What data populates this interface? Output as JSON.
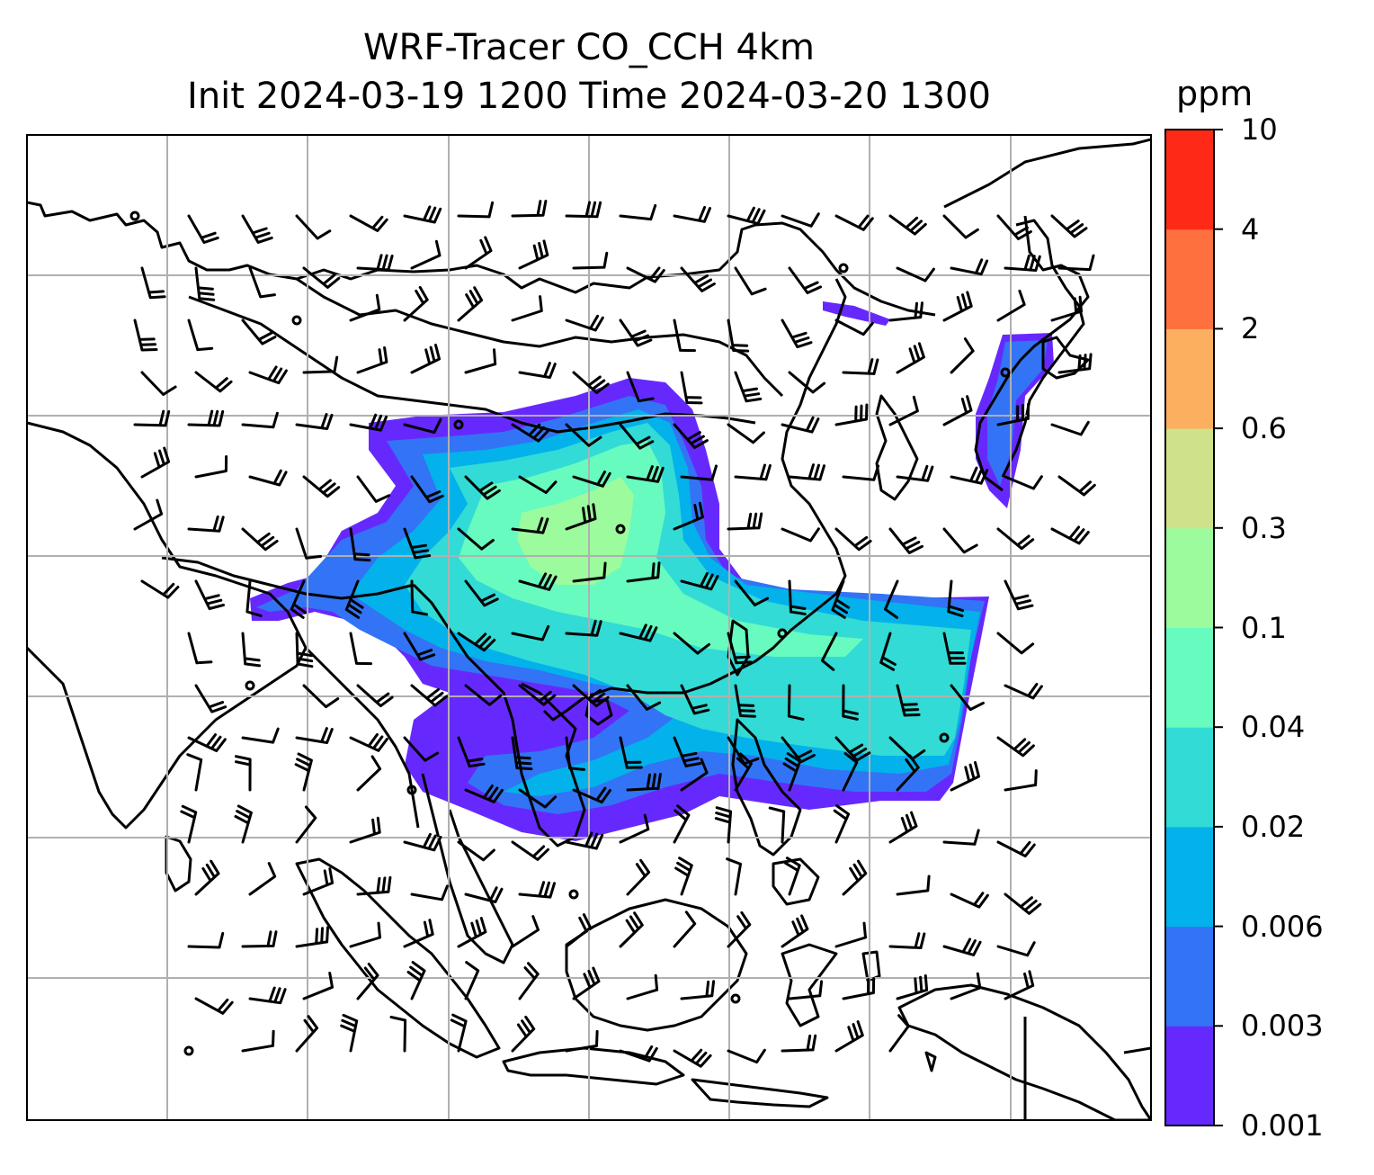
{
  "title": {
    "line1": "WRF-Tracer CO_CCH 4km",
    "line2": "Init 2024-03-19 1200 Time 2024-03-20 1300"
  },
  "colorbar": {
    "unit": "ppm",
    "levels": [
      "0.001",
      "0.003",
      "0.006",
      "0.02",
      "0.04",
      "0.1",
      "0.3",
      "0.6",
      "2",
      "4",
      "10"
    ],
    "colors": [
      "#6629fd",
      "#3274f5",
      "#03b2ea",
      "#32dbd5",
      "#67fbbf",
      "#9cfb9d",
      "#cfe289",
      "#fdaf60",
      "#fe703d",
      "#fe2a17"
    ]
  },
  "map": {
    "gridlines": true,
    "grid_color": "#b0b0b0",
    "coastline_color": "#000000",
    "wind_barb_color": "#000000"
  }
}
